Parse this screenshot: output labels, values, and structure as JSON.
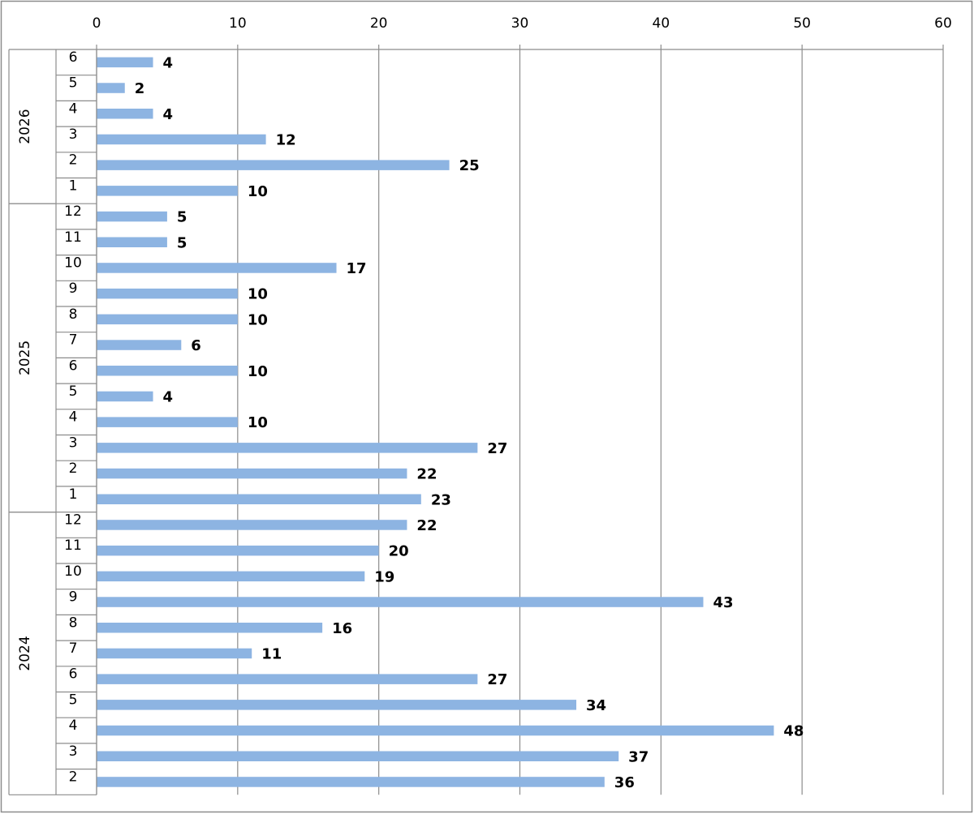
{
  "chart_data": {
    "type": "bar",
    "orientation": "horizontal",
    "title": "",
    "xlabel": "",
    "ylabel": "",
    "xlim": [
      0,
      60
    ],
    "x_ticks": [
      "0",
      "10",
      "20",
      "30",
      "40",
      "50",
      "60"
    ],
    "grid": "vertical",
    "legend": "none",
    "bar_color": "#8DB4E2",
    "data_labels": true,
    "groups": [
      {
        "name": "2026",
        "categories": [
          "6",
          "5",
          "4",
          "3",
          "2",
          "1"
        ],
        "values": [
          4,
          2,
          4,
          12,
          25,
          10
        ]
      },
      {
        "name": "2025",
        "categories": [
          "12",
          "11",
          "10",
          "9",
          "8",
          "7",
          "6",
          "5",
          "4",
          "3",
          "2",
          "1"
        ],
        "values": [
          5,
          5,
          17,
          10,
          10,
          6,
          10,
          4,
          10,
          27,
          22,
          23
        ]
      },
      {
        "name": "2024",
        "categories": [
          "12",
          "11",
          "10",
          "9",
          "8",
          "7",
          "6",
          "5",
          "4",
          "3",
          "2"
        ],
        "values": [
          22,
          20,
          19,
          43,
          16,
          11,
          27,
          34,
          48,
          37,
          36
        ]
      }
    ]
  }
}
